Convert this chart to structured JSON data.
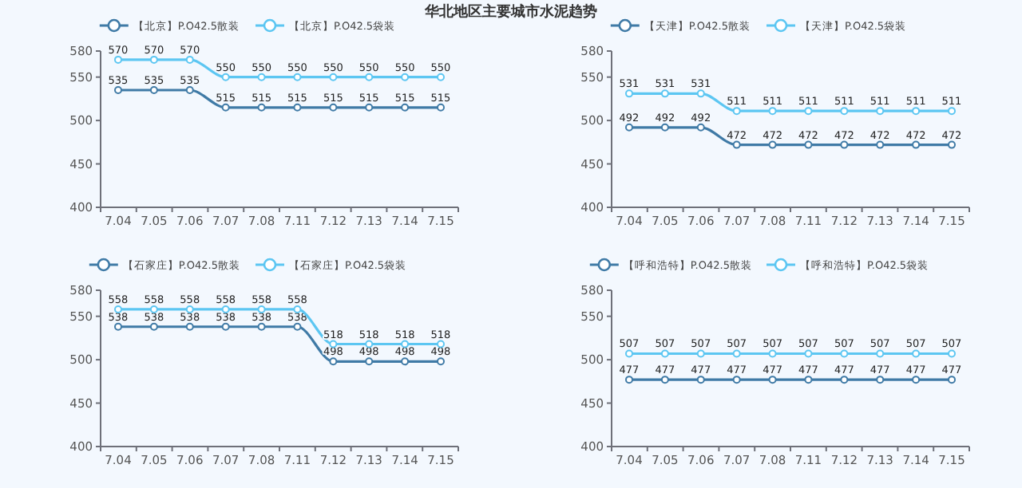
{
  "chart_data": [
    {
      "type": "line",
      "title": "华北地区主要城市水泥趋势",
      "categories": [
        "7.04",
        "7.05",
        "7.06",
        "7.07",
        "7.08",
        "7.11",
        "7.12",
        "7.13",
        "7.14",
        "7.15"
      ],
      "ylim": [
        400,
        580
      ],
      "yticks": [
        400,
        450,
        500,
        550,
        580
      ],
      "grid": false,
      "legend": "top",
      "marker": "circle",
      "data_labels": true,
      "series": [
        {
          "name": "【北京】P.O42.5散装",
          "color": "#3f7aa6",
          "values": [
            535,
            535,
            535,
            515,
            515,
            515,
            515,
            515,
            515,
            515
          ]
        },
        {
          "name": "【北京】P.O42.5袋装",
          "color": "#5cc6f2",
          "values": [
            570,
            570,
            570,
            550,
            550,
            550,
            550,
            550,
            550,
            550
          ]
        }
      ]
    },
    {
      "type": "line",
      "categories": [
        "7.04",
        "7.05",
        "7.06",
        "7.07",
        "7.08",
        "7.11",
        "7.12",
        "7.13",
        "7.14",
        "7.15"
      ],
      "ylim": [
        400,
        580
      ],
      "yticks": [
        400,
        450,
        500,
        550,
        580
      ],
      "grid": false,
      "legend": "top",
      "marker": "circle",
      "data_labels": true,
      "series": [
        {
          "name": "【天津】P.O42.5散装",
          "color": "#3f7aa6",
          "values": [
            492,
            492,
            492,
            472,
            472,
            472,
            472,
            472,
            472,
            472
          ]
        },
        {
          "name": "【天津】P.O42.5袋装",
          "color": "#5cc6f2",
          "values": [
            531,
            531,
            531,
            511,
            511,
            511,
            511,
            511,
            511,
            511
          ]
        }
      ]
    },
    {
      "type": "line",
      "categories": [
        "7.04",
        "7.05",
        "7.06",
        "7.07",
        "7.08",
        "7.11",
        "7.12",
        "7.13",
        "7.14",
        "7.15"
      ],
      "ylim": [
        400,
        580
      ],
      "yticks": [
        400,
        450,
        500,
        550,
        580
      ],
      "grid": false,
      "legend": "top",
      "marker": "circle",
      "data_labels": true,
      "series": [
        {
          "name": "【石家庄】P.O42.5散装",
          "color": "#3f7aa6",
          "values": [
            538,
            538,
            538,
            538,
            538,
            538,
            498,
            498,
            498,
            498
          ]
        },
        {
          "name": "【石家庄】P.O42.5袋装",
          "color": "#5cc6f2",
          "values": [
            558,
            558,
            558,
            558,
            558,
            558,
            518,
            518,
            518,
            518
          ]
        }
      ]
    },
    {
      "type": "line",
      "categories": [
        "7.04",
        "7.05",
        "7.06",
        "7.07",
        "7.08",
        "7.11",
        "7.12",
        "7.13",
        "7.14",
        "7.15"
      ],
      "ylim": [
        400,
        580
      ],
      "yticks": [
        400,
        450,
        500,
        550,
        580
      ],
      "grid": false,
      "legend": "top",
      "marker": "circle",
      "data_labels": true,
      "series": [
        {
          "name": "【呼和浩特】P.O42.5散装",
          "color": "#3f7aa6",
          "values": [
            477,
            477,
            477,
            477,
            477,
            477,
            477,
            477,
            477,
            477
          ]
        },
        {
          "name": "【呼和浩特】P.O42.5袋装",
          "color": "#5cc6f2",
          "values": [
            507,
            507,
            507,
            507,
            507,
            507,
            507,
            507,
            507,
            507
          ]
        }
      ]
    }
  ]
}
